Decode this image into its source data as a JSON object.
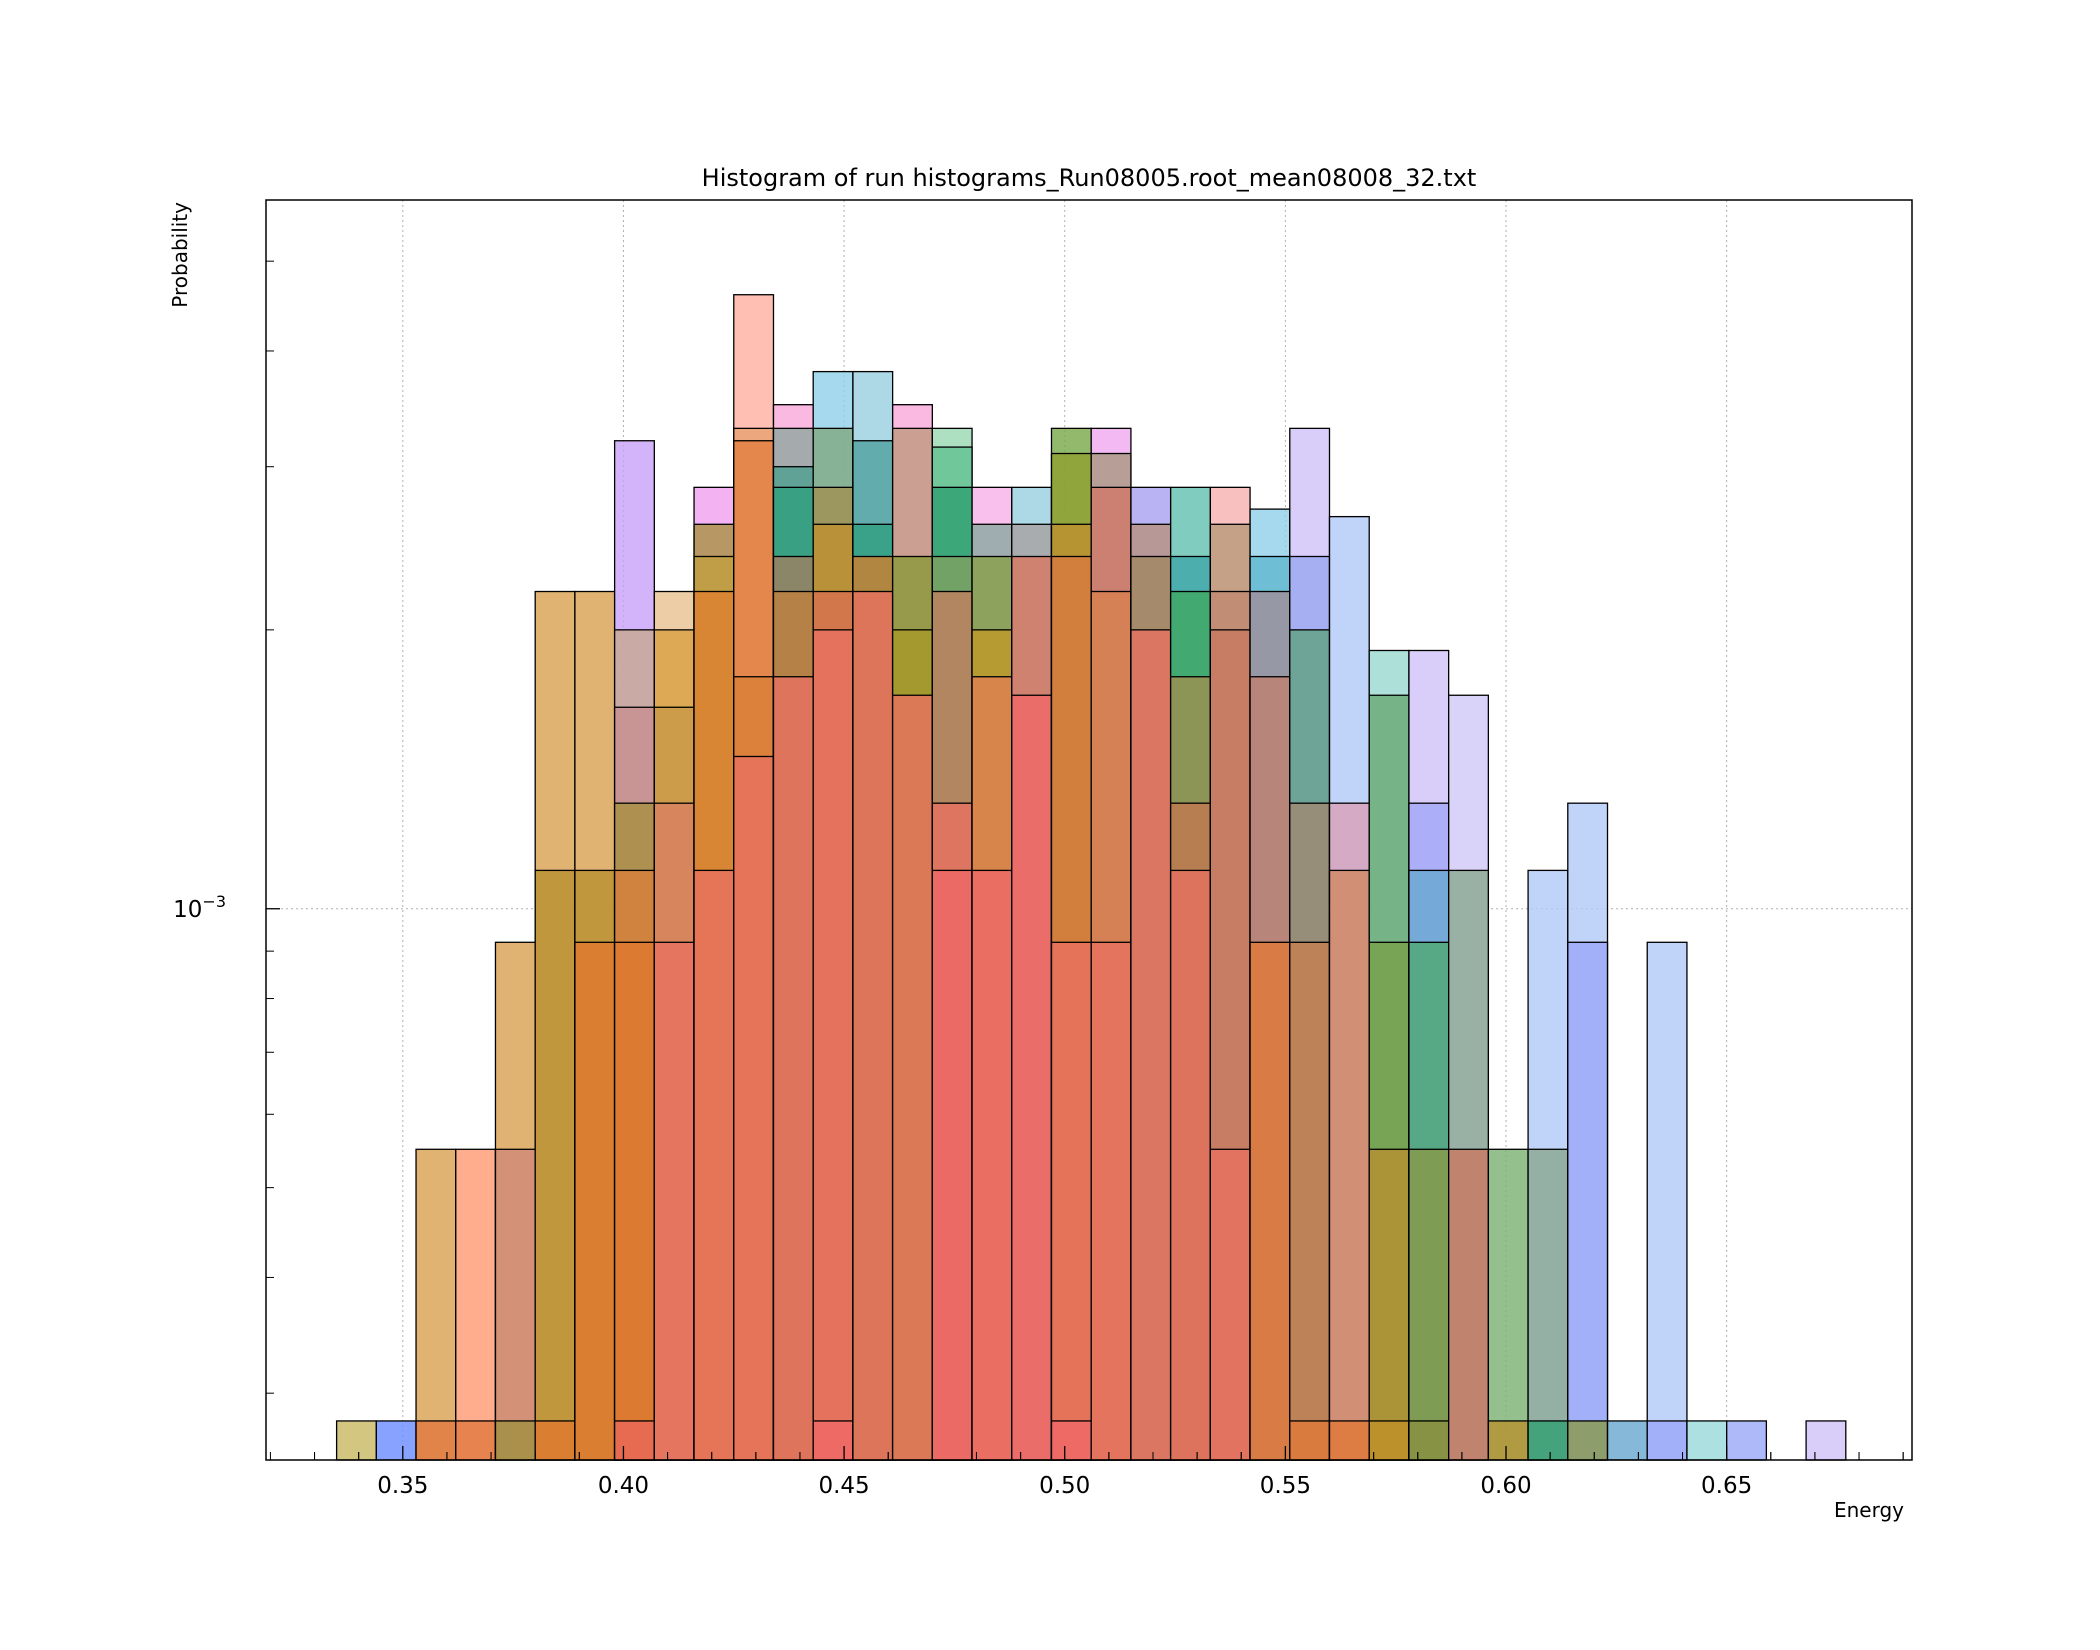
{
  "chart_data": {
    "type": "bar",
    "title": "Histogram of run histograms_Run08005.root_mean08008_32.txt",
    "xlabel": "Energy",
    "ylabel": "Probability",
    "xlim": [
      0.319,
      0.692
    ],
    "ylim_log10": [
      -3.595,
      -2.235
    ],
    "yscale": "log",
    "grid": true,
    "x_ticks": [
      {
        "value": 0.35,
        "label": "0.35"
      },
      {
        "value": 0.4,
        "label": "0.40"
      },
      {
        "value": 0.45,
        "label": "0.45"
      },
      {
        "value": 0.5,
        "label": "0.50"
      },
      {
        "value": 0.55,
        "label": "0.55"
      },
      {
        "value": 0.6,
        "label": "0.60"
      },
      {
        "value": 0.65,
        "label": "0.65"
      }
    ],
    "y_major_ticks": [
      {
        "value": 0.001,
        "base": "10",
        "exponent": "−3"
      }
    ],
    "y_minor_ticks": [
      0.0003,
      0.0004,
      0.0005,
      0.0006,
      0.0007,
      0.0008,
      0.0009,
      0.002,
      0.003,
      0.004,
      0.005
    ],
    "bin_width": 0.009,
    "series_colors": [
      "#ff7f50",
      "#f080c8",
      "#4aa8d8",
      "#2aa05a",
      "#d8a050",
      "#c8a0f8",
      "#6a8cff",
      "#c8b860",
      "#f04848",
      "#7cc8c8"
    ],
    "bars": [
      {
        "x": 0.335,
        "y": 0.00028,
        "color": "#c8b860"
      },
      {
        "x": 0.344,
        "y": 0.00028,
        "color": "#6a8cff"
      },
      {
        "x": 0.353,
        "y": 0.00055,
        "color": "#d8a050"
      },
      {
        "x": 0.353,
        "y": 0.00028,
        "color": "#e07840"
      },
      {
        "x": 0.362,
        "y": 0.00055,
        "color": "#ff9870"
      },
      {
        "x": 0.362,
        "y": 0.00028,
        "color": "#e07840"
      },
      {
        "x": 0.371,
        "y": 0.00055,
        "color": "#d08878"
      },
      {
        "x": 0.371,
        "y": 0.00028,
        "color": "#a09040"
      },
      {
        "x": 0.371,
        "y": 0.00092,
        "color": "#d8a050"
      },
      {
        "x": 0.38,
        "y": 0.0022,
        "color": "#d8a050"
      },
      {
        "x": 0.38,
        "y": 0.0011,
        "color": "#b89030"
      },
      {
        "x": 0.38,
        "y": 0.00028,
        "color": "#e07830"
      },
      {
        "x": 0.389,
        "y": 0.0022,
        "color": "#d8a050"
      },
      {
        "x": 0.389,
        "y": 0.0011,
        "color": "#b89030"
      },
      {
        "x": 0.389,
        "y": 0.00092,
        "color": "#e07830"
      },
      {
        "x": 0.398,
        "y": 0.0032,
        "color": "#c8a0f8"
      },
      {
        "x": 0.398,
        "y": 0.002,
        "color": "#c8a890"
      },
      {
        "x": 0.398,
        "y": 0.00165,
        "color": "#c89090"
      },
      {
        "x": 0.398,
        "y": 0.0013,
        "color": "#a89040"
      },
      {
        "x": 0.398,
        "y": 0.0011,
        "color": "#d8803a"
      },
      {
        "x": 0.398,
        "y": 0.00092,
        "color": "#e07830"
      },
      {
        "x": 0.398,
        "y": 0.00028,
        "color": "#e86858"
      },
      {
        "x": 0.407,
        "y": 0.0022,
        "color": "#e8c090"
      },
      {
        "x": 0.407,
        "y": 0.002,
        "color": "#d8a040"
      },
      {
        "x": 0.407,
        "y": 0.00165,
        "color": "#c89848"
      },
      {
        "x": 0.407,
        "y": 0.0013,
        "color": "#d88060"
      },
      {
        "x": 0.407,
        "y": 0.00092,
        "color": "#e87060"
      },
      {
        "x": 0.416,
        "y": 0.00285,
        "color": "#f0a0f0"
      },
      {
        "x": 0.416,
        "y": 0.0026,
        "color": "#a89040"
      },
      {
        "x": 0.416,
        "y": 0.0024,
        "color": "#c0a040"
      },
      {
        "x": 0.416,
        "y": 0.0022,
        "color": "#e08030"
      },
      {
        "x": 0.416,
        "y": 0.0011,
        "color": "#e87060"
      },
      {
        "x": 0.425,
        "y": 0.0046,
        "color": "#ffb0a0"
      },
      {
        "x": 0.425,
        "y": 0.0033,
        "color": "#e8a070"
      },
      {
        "x": 0.425,
        "y": 0.0032,
        "color": "#e08040"
      },
      {
        "x": 0.425,
        "y": 0.00178,
        "color": "#d88038"
      },
      {
        "x": 0.425,
        "y": 0.00146,
        "color": "#e87060"
      },
      {
        "x": 0.434,
        "y": 0.0035,
        "color": "#f8a8d8"
      },
      {
        "x": 0.434,
        "y": 0.0033,
        "color": "#90a8a0"
      },
      {
        "x": 0.434,
        "y": 0.003,
        "color": "#50a090"
      },
      {
        "x": 0.434,
        "y": 0.00285,
        "color": "#30a080"
      },
      {
        "x": 0.434,
        "y": 0.0024,
        "color": "#a08060"
      },
      {
        "x": 0.434,
        "y": 0.0022,
        "color": "#c08040"
      },
      {
        "x": 0.434,
        "y": 0.00178,
        "color": "#e87060"
      },
      {
        "x": 0.443,
        "y": 0.0038,
        "color": "#90d0e8"
      },
      {
        "x": 0.443,
        "y": 0.0033,
        "color": "#80a880"
      },
      {
        "x": 0.443,
        "y": 0.00285,
        "color": "#a09050"
      },
      {
        "x": 0.443,
        "y": 0.0026,
        "color": "#c09030"
      },
      {
        "x": 0.443,
        "y": 0.0022,
        "color": "#d87050"
      },
      {
        "x": 0.443,
        "y": 0.002,
        "color": "#e87060"
      },
      {
        "x": 0.443,
        "y": 0.00028,
        "color": "#f06868"
      },
      {
        "x": 0.452,
        "y": 0.0038,
        "color": "#98d0e0"
      },
      {
        "x": 0.452,
        "y": 0.0032,
        "color": "#50a0a0"
      },
      {
        "x": 0.452,
        "y": 0.0026,
        "color": "#30a080"
      },
      {
        "x": 0.452,
        "y": 0.0024,
        "color": "#d08030"
      },
      {
        "x": 0.452,
        "y": 0.0022,
        "color": "#e87060"
      },
      {
        "x": 0.461,
        "y": 0.0035,
        "color": "#f8a8d8"
      },
      {
        "x": 0.461,
        "y": 0.0033,
        "color": "#c09880"
      },
      {
        "x": 0.461,
        "y": 0.0024,
        "color": "#889838"
      },
      {
        "x": 0.461,
        "y": 0.002,
        "color": "#a89828"
      },
      {
        "x": 0.461,
        "y": 0.0017,
        "color": "#e87060"
      },
      {
        "x": 0.47,
        "y": 0.0033,
        "color": "#98d8b0"
      },
      {
        "x": 0.47,
        "y": 0.00315,
        "color": "#60c090"
      },
      {
        "x": 0.47,
        "y": 0.00285,
        "color": "#30a070"
      },
      {
        "x": 0.47,
        "y": 0.0024,
        "color": "#80a060"
      },
      {
        "x": 0.47,
        "y": 0.0022,
        "color": "#c08060"
      },
      {
        "x": 0.47,
        "y": 0.0013,
        "color": "#e87060"
      },
      {
        "x": 0.47,
        "y": 0.0011,
        "color": "#f06868"
      },
      {
        "x": 0.479,
        "y": 0.00285,
        "color": "#f8b0e8"
      },
      {
        "x": 0.479,
        "y": 0.0026,
        "color": "#88a8a0"
      },
      {
        "x": 0.479,
        "y": 0.0024,
        "color": "#88a048"
      },
      {
        "x": 0.479,
        "y": 0.002,
        "color": "#c09828"
      },
      {
        "x": 0.479,
        "y": 0.00178,
        "color": "#e08050"
      },
      {
        "x": 0.479,
        "y": 0.0011,
        "color": "#f06868"
      },
      {
        "x": 0.488,
        "y": 0.00285,
        "color": "#98d0e0"
      },
      {
        "x": 0.488,
        "y": 0.0026,
        "color": "#a8a0a0"
      },
      {
        "x": 0.488,
        "y": 0.0024,
        "color": "#d87860"
      },
      {
        "x": 0.488,
        "y": 0.0017,
        "color": "#f06868"
      },
      {
        "x": 0.497,
        "y": 0.0033,
        "color": "#78a848"
      },
      {
        "x": 0.497,
        "y": 0.0031,
        "color": "#90a030"
      },
      {
        "x": 0.497,
        "y": 0.0026,
        "color": "#c09030"
      },
      {
        "x": 0.497,
        "y": 0.0024,
        "color": "#d87840"
      },
      {
        "x": 0.497,
        "y": 0.00092,
        "color": "#e87060"
      },
      {
        "x": 0.497,
        "y": 0.00028,
        "color": "#f06868"
      },
      {
        "x": 0.506,
        "y": 0.0033,
        "color": "#f0a8f0"
      },
      {
        "x": 0.506,
        "y": 0.0031,
        "color": "#a89880"
      },
      {
        "x": 0.506,
        "y": 0.00285,
        "color": "#d07868"
      },
      {
        "x": 0.506,
        "y": 0.0022,
        "color": "#d88050"
      },
      {
        "x": 0.506,
        "y": 0.00092,
        "color": "#e87060"
      },
      {
        "x": 0.515,
        "y": 0.00285,
        "color": "#a8a0f0"
      },
      {
        "x": 0.515,
        "y": 0.0026,
        "color": "#b89080"
      },
      {
        "x": 0.515,
        "y": 0.0024,
        "color": "#a08860"
      },
      {
        "x": 0.515,
        "y": 0.002,
        "color": "#e87060"
      },
      {
        "x": 0.524,
        "y": 0.00285,
        "color": "#60c0b0"
      },
      {
        "x": 0.524,
        "y": 0.0024,
        "color": "#40a8a8"
      },
      {
        "x": 0.524,
        "y": 0.0022,
        "color": "#40a860"
      },
      {
        "x": 0.524,
        "y": 0.00178,
        "color": "#a09050"
      },
      {
        "x": 0.524,
        "y": 0.0013,
        "color": "#c07850"
      },
      {
        "x": 0.524,
        "y": 0.0011,
        "color": "#e87060"
      },
      {
        "x": 0.533,
        "y": 0.00285,
        "color": "#f8b0b0"
      },
      {
        "x": 0.533,
        "y": 0.0026,
        "color": "#b89878"
      },
      {
        "x": 0.533,
        "y": 0.0022,
        "color": "#c08870"
      },
      {
        "x": 0.533,
        "y": 0.002,
        "color": "#c87860"
      },
      {
        "x": 0.533,
        "y": 0.00055,
        "color": "#e87060"
      },
      {
        "x": 0.542,
        "y": 0.0027,
        "color": "#90d0e8"
      },
      {
        "x": 0.542,
        "y": 0.0024,
        "color": "#60b8d0"
      },
      {
        "x": 0.542,
        "y": 0.0022,
        "color": "#a09098"
      },
      {
        "x": 0.542,
        "y": 0.00178,
        "color": "#c08070"
      },
      {
        "x": 0.542,
        "y": 0.00092,
        "color": "#e07838"
      },
      {
        "x": 0.551,
        "y": 0.0033,
        "color": "#d0c0f8"
      },
      {
        "x": 0.551,
        "y": 0.0024,
        "color": "#98a8f0"
      },
      {
        "x": 0.551,
        "y": 0.002,
        "color": "#60a080"
      },
      {
        "x": 0.551,
        "y": 0.0013,
        "color": "#a08870"
      },
      {
        "x": 0.551,
        "y": 0.00092,
        "color": "#c88050"
      },
      {
        "x": 0.551,
        "y": 0.00028,
        "color": "#e07838"
      },
      {
        "x": 0.56,
        "y": 0.00265,
        "color": "#b0c8f8"
      },
      {
        "x": 0.56,
        "y": 0.0013,
        "color": "#d8a0b8"
      },
      {
        "x": 0.56,
        "y": 0.0011,
        "color": "#d08860"
      },
      {
        "x": 0.56,
        "y": 0.00028,
        "color": "#e07838"
      },
      {
        "x": 0.569,
        "y": 0.0019,
        "color": "#98d8d0"
      },
      {
        "x": 0.569,
        "y": 0.0017,
        "color": "#68a870"
      },
      {
        "x": 0.569,
        "y": 0.00092,
        "color": "#78a048"
      },
      {
        "x": 0.569,
        "y": 0.00055,
        "color": "#b89030"
      },
      {
        "x": 0.569,
        "y": 0.00028,
        "color": "#c09028"
      },
      {
        "x": 0.578,
        "y": 0.0019,
        "color": "#d0c0f8"
      },
      {
        "x": 0.578,
        "y": 0.0013,
        "color": "#a0a8f8"
      },
      {
        "x": 0.578,
        "y": 0.0011,
        "color": "#68a8d0"
      },
      {
        "x": 0.578,
        "y": 0.00092,
        "color": "#50a870"
      },
      {
        "x": 0.578,
        "y": 0.00055,
        "color": "#8a9848"
      },
      {
        "x": 0.578,
        "y": 0.00028,
        "color": "#8a9040"
      },
      {
        "x": 0.587,
        "y": 0.0017,
        "color": "#d0c8f8"
      },
      {
        "x": 0.587,
        "y": 0.0011,
        "color": "#88a890"
      },
      {
        "x": 0.587,
        "y": 0.00055,
        "color": "#c87860"
      },
      {
        "x": 0.596,
        "y": 0.00055,
        "color": "#78b070"
      },
      {
        "x": 0.596,
        "y": 0.00028,
        "color": "#b89030"
      },
      {
        "x": 0.605,
        "y": 0.0011,
        "color": "#b0c8f8"
      },
      {
        "x": 0.605,
        "y": 0.00055,
        "color": "#88a890"
      },
      {
        "x": 0.605,
        "y": 0.00028,
        "color": "#30a070"
      },
      {
        "x": 0.614,
        "y": 0.0013,
        "color": "#b0c8f8"
      },
      {
        "x": 0.614,
        "y": 0.00092,
        "color": "#98a8f8"
      },
      {
        "x": 0.614,
        "y": 0.00028,
        "color": "#8a9848"
      },
      {
        "x": 0.623,
        "y": 0.00028,
        "color": "#68a8d0"
      },
      {
        "x": 0.632,
        "y": 0.00092,
        "color": "#b0c8f8"
      },
      {
        "x": 0.632,
        "y": 0.00028,
        "color": "#98a8f8"
      },
      {
        "x": 0.641,
        "y": 0.00028,
        "color": "#98d8d8"
      },
      {
        "x": 0.65,
        "y": 0.00028,
        "color": "#98a8f8"
      },
      {
        "x": 0.668,
        "y": 0.00028,
        "color": "#d0c0f8"
      }
    ]
  }
}
